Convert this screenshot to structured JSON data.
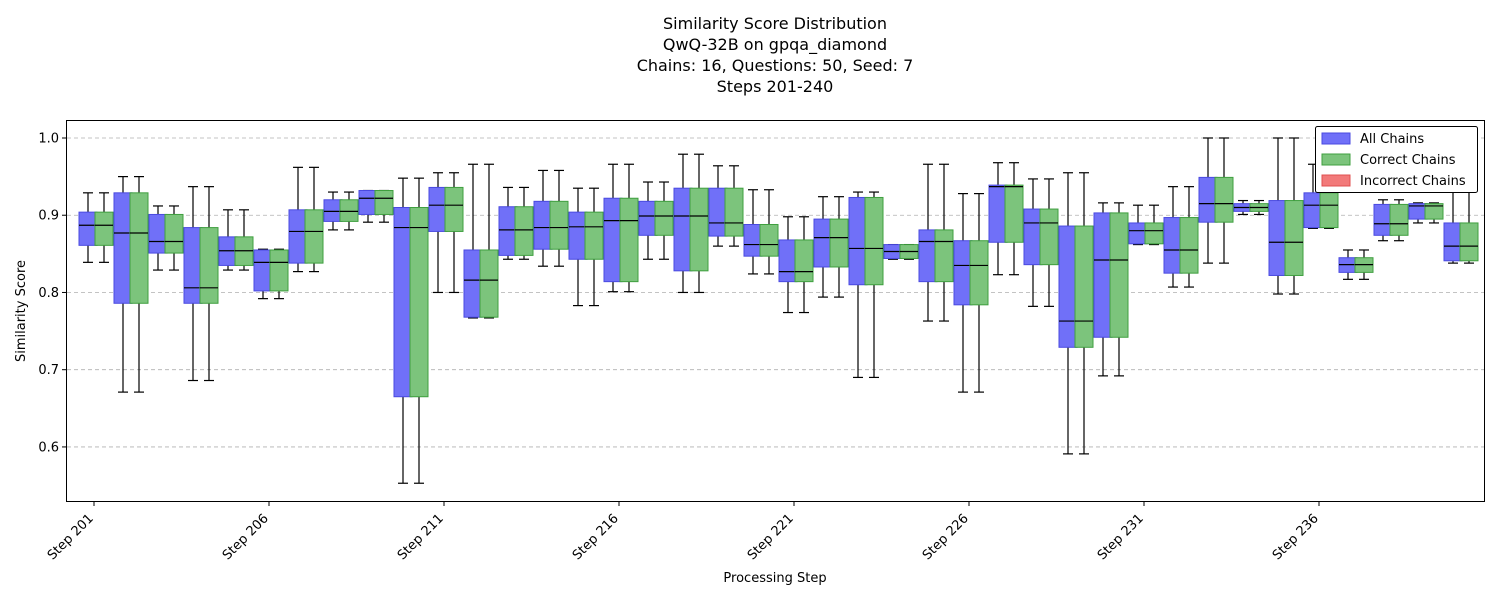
{
  "chart_data": {
    "type": "box",
    "title_lines": [
      "Similarity Score Distribution",
      "QwQ-32B on gpqa_diamond",
      "Chains: 16, Questions: 50, Seed: 7",
      "Steps 201-240"
    ],
    "xlabel": "Processing Step",
    "ylabel": "Similarity Score",
    "ylim": [
      0.53,
      1.022
    ],
    "yticks": [
      0.6,
      0.7,
      0.8,
      0.9,
      1.0
    ],
    "ytick_labels": [
      "0.6",
      "0.7",
      "0.8",
      "0.9",
      "1.0"
    ],
    "grid": "y-dashed",
    "legend_position": "top-right",
    "legend": [
      {
        "name": "All Chains",
        "color": "#7070f8",
        "edge": "#4a4ae0"
      },
      {
        "name": "Correct Chains",
        "color": "#7cc47c",
        "edge": "#3f9f3f"
      },
      {
        "name": "Incorrect Chains",
        "color": "#f27a7a",
        "edge": "#e05050"
      }
    ],
    "tick_steps": [
      201,
      206,
      211,
      216,
      221,
      226,
      231,
      236
    ],
    "tick_labels": [
      "Step 201",
      "Step 206",
      "Step 211",
      "Step 216",
      "Step 221",
      "Step 226",
      "Step 231",
      "Step 236"
    ],
    "series_boxes": {
      "order": [
        "All Chains",
        "Correct Chains"
      ],
      "note_format": "each entry: [whisker_low, q1, median, q3, whisker_high]"
    },
    "steps": [
      {
        "step": 201,
        "all": [
          0.839,
          0.861,
          0.887,
          0.904,
          0.929
        ],
        "correct": [
          0.839,
          0.861,
          0.887,
          0.904,
          0.929
        ]
      },
      {
        "step": 202,
        "all": [
          0.671,
          0.786,
          0.877,
          0.929,
          0.95
        ],
        "correct": [
          0.671,
          0.786,
          0.877,
          0.929,
          0.95
        ]
      },
      {
        "step": 203,
        "all": [
          0.829,
          0.851,
          0.866,
          0.901,
          0.912
        ],
        "correct": [
          0.829,
          0.851,
          0.866,
          0.901,
          0.912
        ]
      },
      {
        "step": 204,
        "all": [
          0.686,
          0.786,
          0.806,
          0.884,
          0.937
        ],
        "correct": [
          0.686,
          0.786,
          0.806,
          0.884,
          0.937
        ]
      },
      {
        "step": 205,
        "all": [
          0.829,
          0.835,
          0.854,
          0.872,
          0.907
        ],
        "correct": [
          0.829,
          0.835,
          0.854,
          0.872,
          0.907
        ]
      },
      {
        "step": 206,
        "all": [
          0.792,
          0.802,
          0.839,
          0.855,
          0.856
        ],
        "correct": [
          0.792,
          0.802,
          0.839,
          0.855,
          0.856
        ]
      },
      {
        "step": 207,
        "all": [
          0.827,
          0.838,
          0.879,
          0.907,
          0.962
        ],
        "correct": [
          0.827,
          0.838,
          0.879,
          0.907,
          0.962
        ]
      },
      {
        "step": 208,
        "all": [
          0.881,
          0.892,
          0.905,
          0.92,
          0.93
        ],
        "correct": [
          0.881,
          0.892,
          0.905,
          0.92,
          0.93
        ]
      },
      {
        "step": 209,
        "all": [
          0.891,
          0.901,
          0.922,
          0.932,
          0.932
        ],
        "correct": [
          0.891,
          0.901,
          0.922,
          0.932,
          0.932
        ]
      },
      {
        "step": 210,
        "all": [
          0.553,
          0.665,
          0.884,
          0.91,
          0.948
        ],
        "correct": [
          0.553,
          0.665,
          0.884,
          0.91,
          0.948
        ]
      },
      {
        "step": 211,
        "all": [
          0.8,
          0.879,
          0.913,
          0.936,
          0.955
        ],
        "correct": [
          0.8,
          0.879,
          0.913,
          0.936,
          0.955
        ]
      },
      {
        "step": 212,
        "all": [
          0.767,
          0.768,
          0.816,
          0.855,
          0.966
        ],
        "correct": [
          0.767,
          0.768,
          0.816,
          0.855,
          0.966
        ]
      },
      {
        "step": 213,
        "all": [
          0.843,
          0.848,
          0.881,
          0.911,
          0.936
        ],
        "correct": [
          0.843,
          0.848,
          0.881,
          0.911,
          0.936
        ]
      },
      {
        "step": 214,
        "all": [
          0.834,
          0.856,
          0.884,
          0.918,
          0.958
        ],
        "correct": [
          0.834,
          0.856,
          0.884,
          0.918,
          0.958
        ]
      },
      {
        "step": 215,
        "all": [
          0.783,
          0.843,
          0.885,
          0.904,
          0.935
        ],
        "correct": [
          0.783,
          0.843,
          0.885,
          0.904,
          0.935
        ]
      },
      {
        "step": 216,
        "all": [
          0.801,
          0.814,
          0.893,
          0.922,
          0.966
        ],
        "correct": [
          0.801,
          0.814,
          0.893,
          0.922,
          0.966
        ]
      },
      {
        "step": 217,
        "all": [
          0.843,
          0.874,
          0.899,
          0.918,
          0.943
        ],
        "correct": [
          0.843,
          0.874,
          0.899,
          0.918,
          0.943
        ]
      },
      {
        "step": 218,
        "all": [
          0.8,
          0.828,
          0.899,
          0.935,
          0.979
        ],
        "correct": [
          0.8,
          0.828,
          0.899,
          0.935,
          0.979
        ]
      },
      {
        "step": 219,
        "all": [
          0.86,
          0.873,
          0.89,
          0.935,
          0.964
        ],
        "correct": [
          0.86,
          0.873,
          0.89,
          0.935,
          0.964
        ]
      },
      {
        "step": 220,
        "all": [
          0.824,
          0.847,
          0.862,
          0.888,
          0.933
        ],
        "correct": [
          0.824,
          0.847,
          0.862,
          0.888,
          0.933
        ]
      },
      {
        "step": 221,
        "all": [
          0.774,
          0.814,
          0.827,
          0.868,
          0.898
        ],
        "correct": [
          0.774,
          0.814,
          0.827,
          0.868,
          0.898
        ]
      },
      {
        "step": 222,
        "all": [
          0.794,
          0.833,
          0.871,
          0.895,
          0.924
        ],
        "correct": [
          0.794,
          0.833,
          0.871,
          0.895,
          0.924
        ]
      },
      {
        "step": 223,
        "all": [
          0.69,
          0.81,
          0.857,
          0.923,
          0.93
        ],
        "correct": [
          0.69,
          0.81,
          0.857,
          0.923,
          0.93
        ]
      },
      {
        "step": 224,
        "all": [
          0.843,
          0.844,
          0.853,
          0.862,
          0.862
        ],
        "correct": [
          0.843,
          0.844,
          0.853,
          0.862,
          0.862
        ]
      },
      {
        "step": 225,
        "all": [
          0.763,
          0.814,
          0.866,
          0.881,
          0.966
        ],
        "correct": [
          0.763,
          0.814,
          0.866,
          0.881,
          0.966
        ]
      },
      {
        "step": 226,
        "all": [
          0.671,
          0.784,
          0.835,
          0.867,
          0.928
        ],
        "correct": [
          0.671,
          0.784,
          0.835,
          0.867,
          0.928
        ]
      },
      {
        "step": 227,
        "all": [
          0.823,
          0.865,
          0.937,
          0.939,
          0.968
        ],
        "correct": [
          0.823,
          0.865,
          0.937,
          0.939,
          0.968
        ]
      },
      {
        "step": 228,
        "all": [
          0.782,
          0.836,
          0.89,
          0.908,
          0.947
        ],
        "correct": [
          0.782,
          0.836,
          0.89,
          0.908,
          0.947
        ]
      },
      {
        "step": 229,
        "all": [
          0.591,
          0.729,
          0.763,
          0.886,
          0.955
        ],
        "correct": [
          0.591,
          0.729,
          0.763,
          0.886,
          0.955
        ]
      },
      {
        "step": 230,
        "all": [
          0.692,
          0.742,
          0.842,
          0.903,
          0.916
        ],
        "correct": [
          0.692,
          0.742,
          0.842,
          0.903,
          0.916
        ]
      },
      {
        "step": 231,
        "all": [
          0.862,
          0.863,
          0.88,
          0.89,
          0.913
        ],
        "correct": [
          0.862,
          0.863,
          0.88,
          0.89,
          0.913
        ]
      },
      {
        "step": 232,
        "all": [
          0.807,
          0.825,
          0.855,
          0.897,
          0.937
        ],
        "correct": [
          0.807,
          0.825,
          0.855,
          0.897,
          0.937
        ]
      },
      {
        "step": 233,
        "all": [
          0.838,
          0.891,
          0.915,
          0.949,
          1.0
        ],
        "correct": [
          0.838,
          0.891,
          0.915,
          0.949,
          1.0
        ]
      },
      {
        "step": 234,
        "all": [
          0.901,
          0.905,
          0.91,
          0.915,
          0.919
        ],
        "correct": [
          0.901,
          0.905,
          0.91,
          0.915,
          0.919
        ]
      },
      {
        "step": 235,
        "all": [
          0.798,
          0.822,
          0.865,
          0.919,
          1.0
        ],
        "correct": [
          0.798,
          0.822,
          0.865,
          0.919,
          1.0
        ]
      },
      {
        "step": 236,
        "all": [
          0.883,
          0.884,
          0.913,
          0.929,
          0.966
        ],
        "correct": [
          0.883,
          0.884,
          0.913,
          0.929,
          0.966
        ]
      },
      {
        "step": 237,
        "all": [
          0.817,
          0.826,
          0.836,
          0.845,
          0.855
        ],
        "correct": [
          0.817,
          0.826,
          0.836,
          0.845,
          0.855
        ]
      },
      {
        "step": 238,
        "all": [
          0.867,
          0.874,
          0.889,
          0.914,
          0.92
        ],
        "correct": [
          0.867,
          0.874,
          0.889,
          0.914,
          0.92
        ]
      },
      {
        "step": 239,
        "all": [
          0.89,
          0.895,
          0.912,
          0.915,
          0.916
        ],
        "correct": [
          0.89,
          0.895,
          0.912,
          0.915,
          0.916
        ]
      },
      {
        "step": 240,
        "all": [
          0.838,
          0.841,
          0.86,
          0.89,
          0.94
        ],
        "correct": [
          0.838,
          0.841,
          0.86,
          0.89,
          0.94
        ]
      }
    ]
  }
}
